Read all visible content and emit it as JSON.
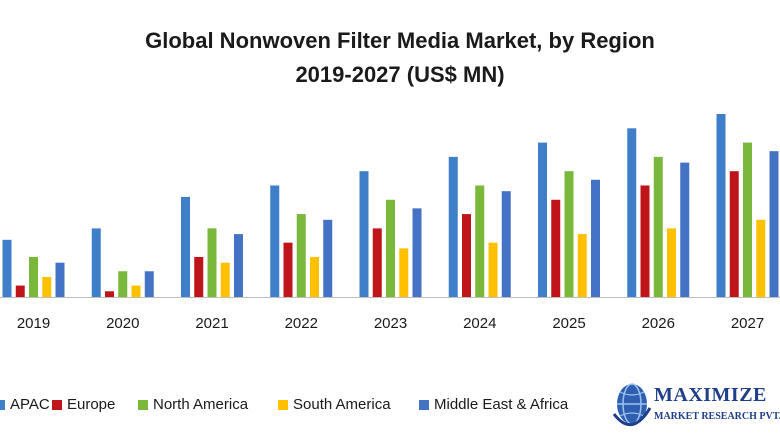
{
  "chart_data": {
    "type": "bar",
    "title_line1": "Global Nonwoven Filter Media Market, by Region",
    "title_line2": "2019-2027 (US$ MN)",
    "categories": [
      "2019",
      "2020",
      "2021",
      "2022",
      "2023",
      "2024",
      "2025",
      "2026",
      "2027"
    ],
    "series": [
      {
        "name": "APAC",
        "color": "#3f7fc9",
        "values": [
          2.0,
          2.4,
          3.5,
          3.9,
          4.4,
          4.9,
          5.4,
          5.9,
          6.4
        ]
      },
      {
        "name": "Europe",
        "color": "#c0141b",
        "values": [
          0.4,
          0.2,
          1.4,
          1.9,
          2.4,
          2.9,
          3.4,
          3.9,
          4.4
        ]
      },
      {
        "name": "North America",
        "color": "#79b83a",
        "values": [
          1.4,
          0.9,
          2.4,
          2.9,
          3.4,
          3.9,
          4.4,
          4.9,
          5.4
        ]
      },
      {
        "name": "South America",
        "color": "#ffc000",
        "values": [
          0.7,
          0.4,
          1.2,
          1.4,
          1.7,
          1.9,
          2.2,
          2.4,
          2.7
        ]
      },
      {
        "name": "Middle East & Africa",
        "color": "#4472c4",
        "values": [
          1.2,
          0.9,
          2.2,
          2.7,
          3.1,
          3.7,
          4.1,
          4.7,
          5.1
        ]
      }
    ],
    "ylim": [
      0,
      6.4
    ],
    "grid": false,
    "legend_position": "bottom"
  },
  "logo": {
    "name": "MAXIMIZE",
    "subtitle": "MARKET RESEARCH PVT. LT"
  }
}
